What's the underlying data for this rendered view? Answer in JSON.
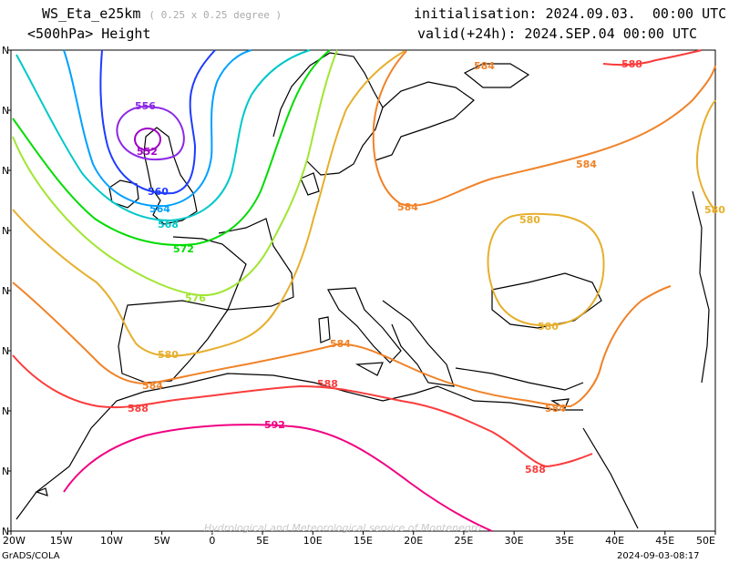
{
  "header": {
    "model": "WS_Eta_e25km",
    "resolution": "( 0.25 x 0.25 degree )",
    "level": "<500hPa> Height",
    "init_label": "initialisation:",
    "init_value": "2024.09.03.  00:00 UTC",
    "valid_label": "valid(+24h):",
    "valid_value": "2024.SEP.04 00:00 UTC"
  },
  "footer": {
    "software": "GrADS/COLA",
    "timestamp": "2024-09-03-08:17",
    "watermark": "Hydrological and Meteorological service of Montenegro"
  },
  "axis": {
    "lon_ticks": [
      "20W",
      "15W",
      "10W",
      "5W",
      "0",
      "5E",
      "10E",
      "15E",
      "20E",
      "25E",
      "30E",
      "35E",
      "40E",
      "45E",
      "50E"
    ],
    "lat_ticks": [
      "N",
      "N",
      "N",
      "N",
      "N",
      "N",
      "N",
      "N",
      "N"
    ]
  },
  "contours": [
    {
      "value": 552,
      "color": "#a000c8"
    },
    {
      "value": 556,
      "color": "#8c28e6"
    },
    {
      "value": 560,
      "color": "#1e3cff"
    },
    {
      "value": 564,
      "color": "#00a0ff"
    },
    {
      "value": 568,
      "color": "#00c8c8"
    },
    {
      "value": 572,
      "color": "#00dc00"
    },
    {
      "value": 576,
      "color": "#a0e632"
    },
    {
      "value": 580,
      "color": "#e6af2d"
    },
    {
      "value": 584,
      "color": "#f08228"
    },
    {
      "value": 588,
      "color": "#fa3c3c"
    },
    {
      "value": 592,
      "color": "#f00082"
    }
  ]
}
